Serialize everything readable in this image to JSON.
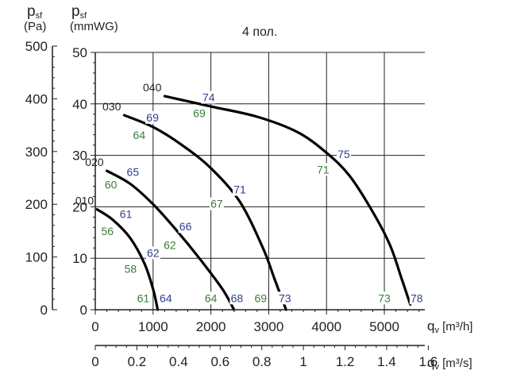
{
  "chart_data": {
    "type": "line",
    "title": "4 пол.",
    "y_left_label": {
      "symbol": "p",
      "sub": "sf",
      "unit": "(Pa)"
    },
    "y_right_label": {
      "symbol": "p",
      "sub": "sf",
      "unit": "(mmWG)"
    },
    "x_label": {
      "symbol": "q",
      "sub": "v",
      "unit": "[m³/h]"
    },
    "x2_label": {
      "symbol": "q",
      "sub": "v",
      "unit": "[m³/s]"
    },
    "pa_ticks": [
      "500",
      "400",
      "300",
      "200",
      "100",
      "0"
    ],
    "mmwg_ticks": [
      "50",
      "40",
      "30",
      "20",
      "10",
      "0"
    ],
    "x_ticks": [
      "0",
      "1000",
      "2000",
      "3000",
      "4000",
      "5000"
    ],
    "x2_ticks": [
      "0",
      "0.2",
      "0.4",
      "0.6",
      "0.8",
      "1",
      "1.2",
      "1.4",
      "1.6"
    ],
    "xlim": [
      0,
      5700
    ],
    "ylim_mmwg": [
      0,
      50
    ],
    "grid": true,
    "series": [
      {
        "name": "010",
        "x": [
          30,
          300,
          600,
          850,
          1000,
          1080
        ],
        "y": [
          19.5,
          17.5,
          14,
          9,
          4,
          0
        ]
      },
      {
        "name": "020",
        "x": [
          200,
          600,
          1000,
          1400,
          1800,
          2200,
          2400
        ],
        "y": [
          27,
          24.5,
          20.5,
          15.5,
          10,
          4,
          0
        ]
      },
      {
        "name": "030",
        "x": [
          500,
          1000,
          1500,
          2000,
          2500,
          2900,
          3100,
          3300
        ],
        "y": [
          37.8,
          35.5,
          32,
          27.5,
          21,
          12,
          6,
          0
        ]
      },
      {
        "name": "040",
        "x": [
          1200,
          2000,
          2800,
          3500,
          4000,
          4400,
          4800,
          5100,
          5300,
          5450
        ],
        "y": [
          41.5,
          39.5,
          37.5,
          34.5,
          30.5,
          26,
          19,
          12.5,
          6,
          1
        ]
      }
    ],
    "annotations": [
      {
        "text": "74",
        "x": 1960,
        "y": 40.5,
        "color": "blue"
      },
      {
        "text": "69",
        "x": 1800,
        "y": 37.4,
        "color": "green"
      },
      {
        "text": "69",
        "x": 990,
        "y": 36.6,
        "color": "blue"
      },
      {
        "text": "64",
        "x": 760,
        "y": 33.2,
        "color": "green"
      },
      {
        "text": "75",
        "x": 4300,
        "y": 29.5,
        "color": "blue"
      },
      {
        "text": "71",
        "x": 3940,
        "y": 26.5,
        "color": "green"
      },
      {
        "text": "65",
        "x": 650,
        "y": 26,
        "color": "blue"
      },
      {
        "text": "60",
        "x": 270,
        "y": 23.5,
        "color": "green"
      },
      {
        "text": "71",
        "x": 2500,
        "y": 22.6,
        "color": "blue"
      },
      {
        "text": "67",
        "x": 2100,
        "y": 19.8,
        "color": "green"
      },
      {
        "text": "61",
        "x": 530,
        "y": 17.8,
        "color": "blue"
      },
      {
        "text": "56",
        "x": 210,
        "y": 14.5,
        "color": "green"
      },
      {
        "text": "66",
        "x": 1560,
        "y": 15.4,
        "color": "blue"
      },
      {
        "text": "62",
        "x": 1290,
        "y": 11.8,
        "color": "green"
      },
      {
        "text": "62",
        "x": 1000,
        "y": 10.3,
        "color": "blue"
      },
      {
        "text": "58",
        "x": 610,
        "y": 7.2,
        "color": "green"
      },
      {
        "text": "61",
        "x": 830,
        "y": 1.5,
        "color": "green"
      },
      {
        "text": "64",
        "x": 1220,
        "y": 1.5,
        "color": "blue"
      },
      {
        "text": "64",
        "x": 2000,
        "y": 1.5,
        "color": "green"
      },
      {
        "text": "68",
        "x": 2450,
        "y": 1.5,
        "color": "blue"
      },
      {
        "text": "69",
        "x": 2860,
        "y": 1.5,
        "color": "green"
      },
      {
        "text": "73",
        "x": 3280,
        "y": 1.5,
        "color": "blue"
      },
      {
        "text": "73",
        "x": 5000,
        "y": 1.5,
        "color": "green"
      },
      {
        "text": "78",
        "x": 5560,
        "y": 1.5,
        "color": "blue"
      }
    ],
    "colors": {
      "axis": "#231f20",
      "grid": "#231f20",
      "curve": "#000000",
      "blue_label": "#2e3f8f",
      "green_label": "#3b7d3a"
    }
  }
}
